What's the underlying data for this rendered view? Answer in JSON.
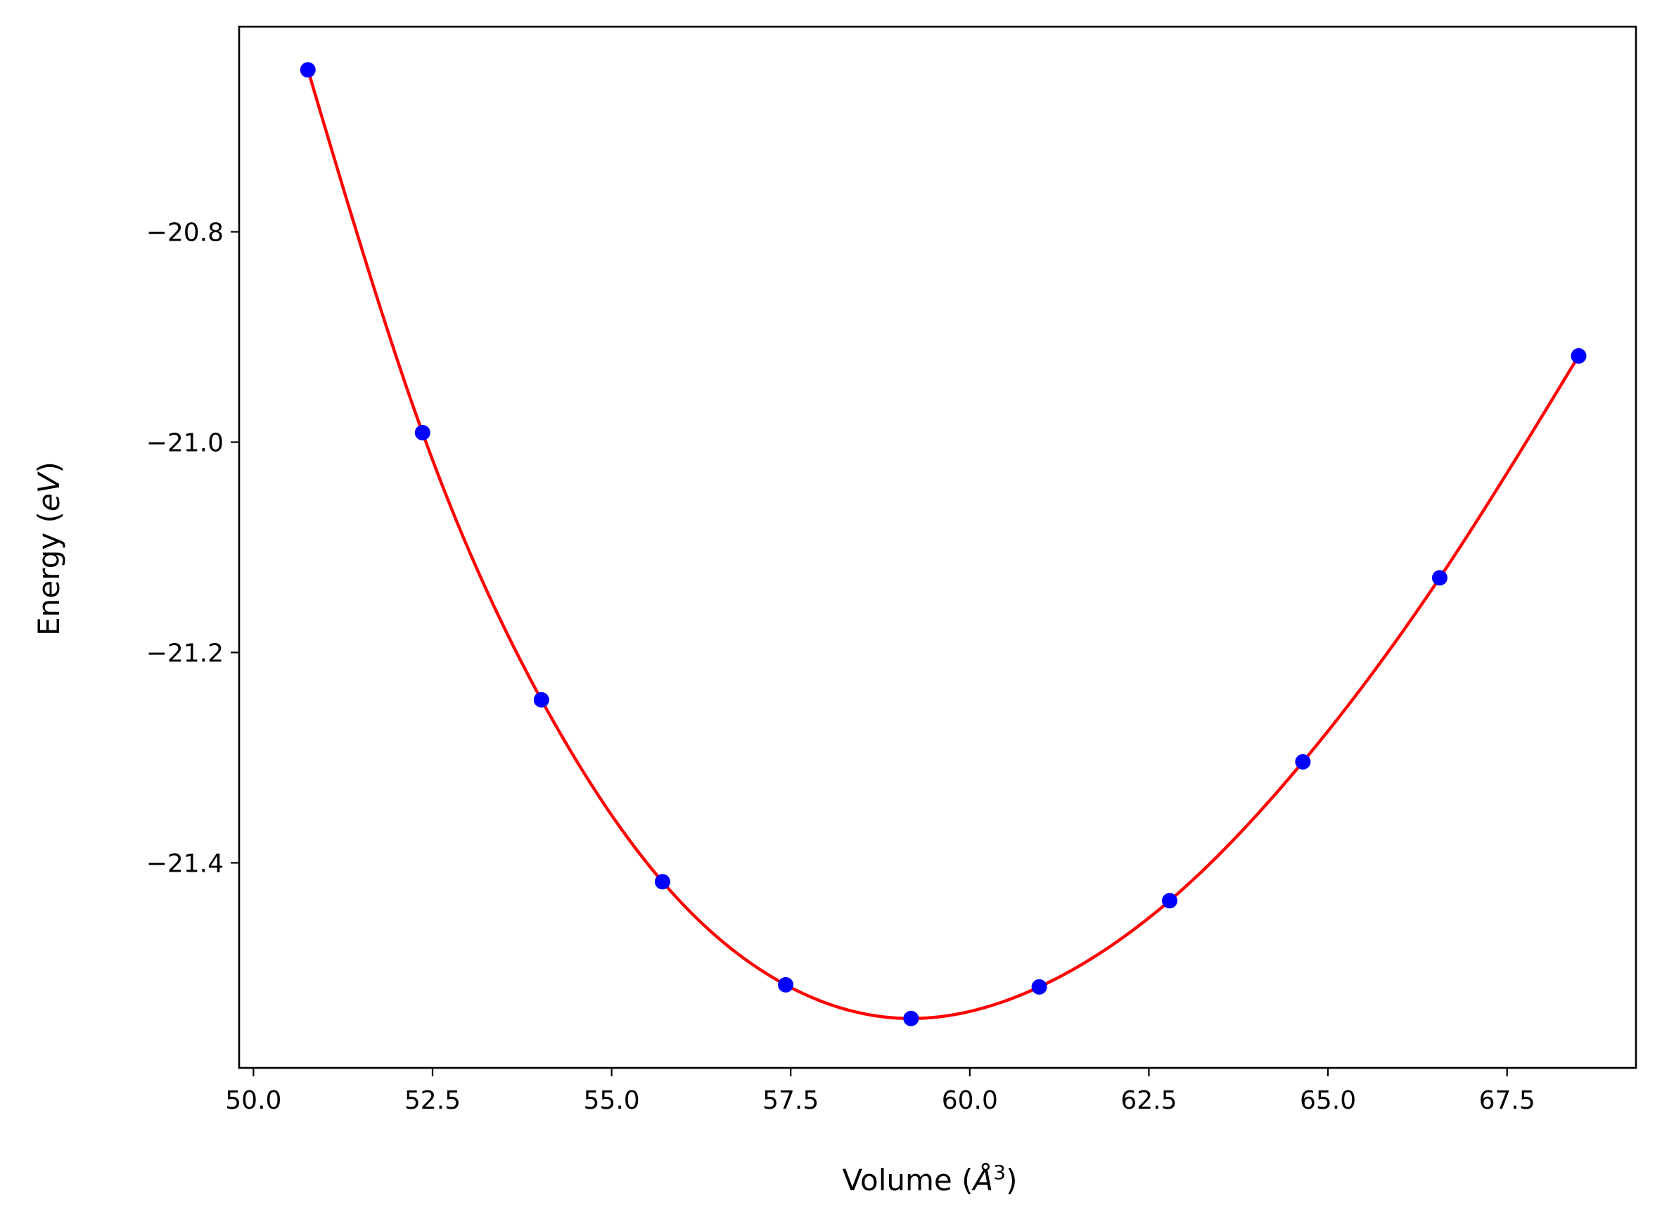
{
  "chart_data": {
    "type": "line",
    "title": "",
    "xlabel": "Volume (Å³)",
    "xlabel_main": "Volume (",
    "xlabel_unit": "Å",
    "xlabel_sup": "3",
    "xlabel_close": ")",
    "ylabel": "Energy (eV)",
    "ylabel_main": "Energy (",
    "ylabel_unit": "eV",
    "ylabel_close": ")",
    "xlim": [
      49.8,
      69.3
    ],
    "ylim": [
      -21.595,
      -20.605
    ],
    "xticks": [
      50.0,
      52.5,
      55.0,
      57.5,
      60.0,
      62.5,
      65.0,
      67.5
    ],
    "xtick_labels": [
      "50.0",
      "52.5",
      "55.0",
      "57.5",
      "60.0",
      "62.5",
      "65.0",
      "67.5"
    ],
    "yticks": [
      -20.8,
      -21.0,
      -21.2,
      -21.4
    ],
    "ytick_labels": [
      "−20.8",
      "−21.0",
      "−21.2",
      "−21.4"
    ],
    "grid": false,
    "series": [
      {
        "kind": "scatter",
        "color": "#0000ff",
        "x": [
          50.76,
          52.36,
          54.02,
          55.71,
          57.43,
          59.18,
          60.97,
          62.79,
          64.65,
          66.56,
          68.5
        ],
        "y": [
          -20.646,
          -20.991,
          -21.245,
          -21.418,
          -21.516,
          -21.548,
          -21.518,
          -21.436,
          -21.304,
          -21.129,
          -20.918
        ]
      },
      {
        "kind": "line",
        "color": "#ff0000",
        "fit": "cubic-spline",
        "x": [
          50.76,
          52.36,
          54.02,
          55.71,
          57.43,
          59.18,
          60.97,
          62.79,
          64.65,
          66.56,
          68.5
        ],
        "y": [
          -20.646,
          -20.991,
          -21.245,
          -21.418,
          -21.516,
          -21.548,
          -21.518,
          -21.436,
          -21.304,
          -21.129,
          -20.918
        ]
      }
    ]
  }
}
